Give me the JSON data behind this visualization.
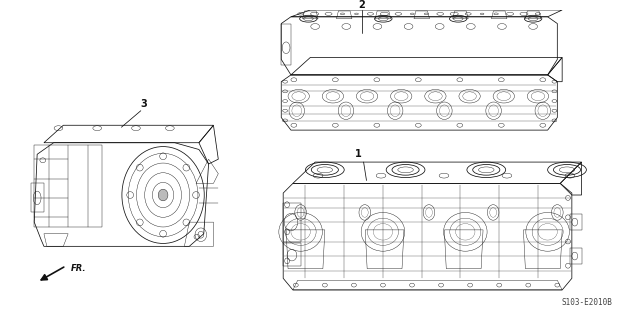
{
  "background_color": "#ffffff",
  "fig_width": 6.4,
  "fig_height": 3.19,
  "dpi": 100,
  "diagram_code": "S103-E2010B",
  "label1": "1",
  "label2": "2",
  "label3": "3",
  "fr_text": "FR.",
  "lc": "#111111",
  "lw_main": 0.55,
  "lw_thin": 0.3,
  "lw_thick": 0.9
}
